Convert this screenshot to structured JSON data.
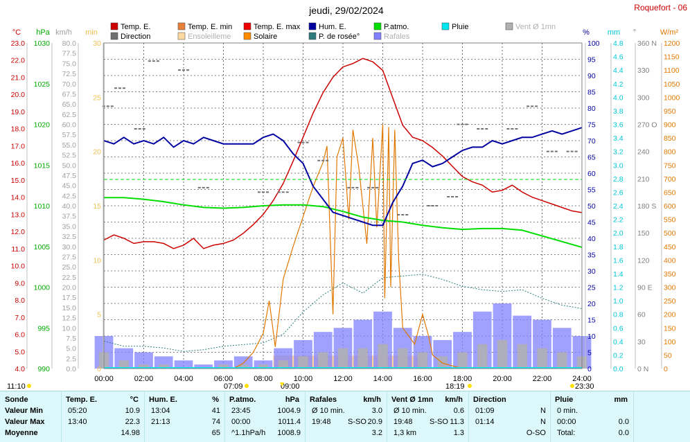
{
  "header": {
    "title": "jeudi, 29/02/2024",
    "station": "Roquefort - 06"
  },
  "legend": [
    {
      "label": "Temp. E.",
      "color": "#cc0000"
    },
    {
      "label": "Temp. E. min",
      "color": "#e8803c"
    },
    {
      "label": "Temp. E. max",
      "color": "#ee0000"
    },
    {
      "label": "Hum. E.",
      "color": "#0000a0"
    },
    {
      "label": "P.atmo.",
      "color": "#00dd00"
    },
    {
      "label": "Pluie",
      "color": "#00e5ee"
    },
    {
      "label": "Vent Ø 1mn",
      "color": "#b0b0b0"
    },
    {
      "label": "Direction",
      "color": "#707070"
    },
    {
      "label": "Ensoleilleme",
      "color": "#ffd9a0"
    },
    {
      "label": "Solaire",
      "color": "#ff8c00"
    },
    {
      "label": "P. de rosée°",
      "color": "#2e7b7b"
    },
    {
      "label": "Rafales",
      "color": "#8080ff"
    }
  ],
  "chart_data": {
    "type": "line",
    "title": "jeudi, 29/02/2024",
    "x_ticks": [
      "00:00",
      "02:00",
      "04:00",
      "06:00",
      "08:00",
      "10:00",
      "12:00",
      "14:00",
      "16:00",
      "18:00",
      "20:00",
      "22:00",
      "24:00"
    ],
    "axes": {
      "temp_c": {
        "unit": "°C",
        "range": [
          4.0,
          23.0
        ],
        "ticks": [
          "23.0",
          "22.0",
          "21.0",
          "20.0",
          "19.0",
          "18.0",
          "17.0",
          "16.0",
          "15.0",
          "14.0",
          "13.0",
          "12.0",
          "11.0",
          "10.0",
          "9.0",
          "8.0",
          "7.0",
          "6.0",
          "5.0",
          "4.0"
        ]
      },
      "pressure_hpa": {
        "unit": "hPa",
        "range": [
          990,
          1030
        ],
        "ticks": [
          "1030",
          "1025",
          "1020",
          "1015",
          "1010",
          "1005",
          "1000",
          "995",
          "990"
        ]
      },
      "wind_kmh": {
        "unit": "km/h",
        "range": [
          0.0,
          80.0
        ],
        "ticks": [
          "80.0",
          "77.5",
          "75.0",
          "72.5",
          "70.0",
          "67.5",
          "65.0",
          "62.5",
          "60.0",
          "57.5",
          "55.0",
          "52.5",
          "50.0",
          "47.5",
          "45.0",
          "42.5",
          "40.0",
          "37.5",
          "35.0",
          "32.5",
          "30.0",
          "27.5",
          "25.0",
          "22.5",
          "20.0",
          "17.5",
          "15.0",
          "12.5",
          "10.0",
          "7.5",
          "5.0",
          "2.5",
          "0.0"
        ]
      },
      "min_scale": {
        "unit": "min",
        "range": [
          0,
          30
        ],
        "ticks": [
          "30",
          "25",
          "20",
          "15",
          "10",
          "5",
          "0"
        ]
      },
      "humidity_pct": {
        "unit": "%",
        "range": [
          0,
          100
        ],
        "ticks": [
          "100",
          "95",
          "90",
          "85",
          "80",
          "75",
          "70",
          "65",
          "60",
          "55",
          "50",
          "45",
          "40",
          "35",
          "30",
          "25",
          "20",
          "15",
          "10",
          "5",
          "0"
        ]
      },
      "rain_mm": {
        "unit": "mm",
        "range": [
          0.0,
          4.8
        ],
        "ticks": [
          "4.8",
          "4.6",
          "4.4",
          "4.2",
          "4.0",
          "3.8",
          "3.6",
          "3.4",
          "3.2",
          "3.0",
          "2.8",
          "2.6",
          "2.4",
          "2.2",
          "2.0",
          "1.8",
          "1.6",
          "1.4",
          "1.2",
          "1.0",
          "0.8",
          "0.6",
          "0.4",
          "0.2",
          "0.0"
        ]
      },
      "direction_deg": {
        "unit": "°",
        "range": [
          0,
          360
        ],
        "ticks": [
          "360 N",
          "330",
          "300",
          "270 O",
          "240",
          "210",
          "180 S",
          "150",
          "120",
          "90 E",
          "60",
          "30",
          "0 N"
        ]
      },
      "solar_wm2": {
        "unit": "W/m²",
        "range": [
          0,
          1200
        ],
        "ticks": [
          "1200",
          "1150",
          "1100",
          "1050",
          "1000",
          "950",
          "900",
          "850",
          "800",
          "750",
          "700",
          "650",
          "600",
          "550",
          "500",
          "450",
          "400",
          "350",
          "300",
          "250",
          "200",
          "150",
          "100",
          "50",
          "0"
        ]
      }
    },
    "series": [
      {
        "name": "Temp. E.",
        "unit": "°C",
        "x": [
          0,
          0.5,
          1,
          1.5,
          2,
          2.5,
          3,
          3.5,
          4,
          4.5,
          5,
          5.5,
          6,
          6.5,
          7,
          7.5,
          8,
          8.5,
          9,
          9.5,
          10,
          10.5,
          11,
          11.5,
          12,
          12.5,
          13,
          13.5,
          14,
          14.5,
          15,
          15.5,
          16,
          16.5,
          17,
          17.5,
          18,
          18.5,
          19,
          19.5,
          20,
          20.5,
          21,
          21.5,
          22,
          22.5,
          23,
          23.5,
          24
        ],
        "y": [
          11.5,
          11.8,
          11.6,
          11.3,
          11.4,
          11.4,
          11.3,
          11.0,
          11.2,
          11.6,
          11.0,
          11.2,
          11.3,
          11.5,
          11.9,
          12.4,
          13.0,
          13.8,
          14.8,
          16.1,
          17.5,
          18.9,
          20.1,
          21.0,
          21.6,
          21.8,
          22.1,
          21.9,
          21.4,
          19.8,
          18.2,
          17.5,
          17.3,
          16.9,
          16.4,
          15.8,
          15.2,
          14.9,
          14.7,
          14.3,
          14.4,
          14.7,
          14.3,
          14.0,
          13.8,
          13.6,
          13.4,
          13.2,
          13.1
        ]
      },
      {
        "name": "Hum. E.",
        "unit": "%",
        "x": [
          0,
          0.5,
          1,
          1.5,
          2,
          2.5,
          3,
          3.5,
          4,
          4.5,
          5,
          5.5,
          6,
          6.5,
          7,
          7.5,
          8,
          8.5,
          9,
          9.5,
          10,
          10.5,
          11,
          11.5,
          12,
          12.5,
          13,
          13.5,
          14,
          14.5,
          15,
          15.5,
          16,
          16.5,
          17,
          17.5,
          18,
          18.5,
          19,
          19.5,
          20,
          20.5,
          21,
          21.5,
          22,
          22.5,
          23,
          23.5,
          24
        ],
        "y": [
          70,
          69,
          71,
          69,
          70,
          69,
          71,
          68,
          70,
          69,
          71,
          70,
          69,
          69,
          69,
          69,
          71,
          72,
          70,
          66,
          63,
          56,
          52,
          48,
          47,
          46,
          45,
          44,
          44,
          51,
          56,
          63,
          64,
          62,
          63,
          65,
          67,
          68,
          68,
          70,
          69,
          70,
          71,
          71,
          72,
          73,
          72,
          73,
          74
        ]
      },
      {
        "name": "P.atmo.",
        "unit": "hPa",
        "x": [
          0,
          1,
          2,
          3,
          4,
          5,
          6,
          7,
          8,
          9,
          10,
          11,
          12,
          13,
          14,
          15,
          16,
          17,
          18,
          19,
          20,
          21,
          22,
          23,
          24
        ],
        "y": [
          1011.0,
          1011.0,
          1010.8,
          1010.5,
          1010.1,
          1009.8,
          1009.7,
          1009.8,
          1010.0,
          1010.1,
          1010.1,
          1009.9,
          1009.3,
          1008.6,
          1008.2,
          1008.0,
          1007.6,
          1007.3,
          1007.1,
          1007.2,
          1007.2,
          1007.0,
          1006.3,
          1005.6,
          1004.9
        ]
      },
      {
        "name": "P. de rosée°",
        "unit": "°C",
        "x": [
          0,
          1,
          2,
          3,
          4,
          5,
          6,
          7,
          8,
          9,
          10,
          11,
          12,
          13,
          14,
          15,
          16,
          17,
          18,
          19,
          20,
          21,
          22,
          23,
          24
        ],
        "y": [
          5.6,
          5.3,
          5.3,
          5.2,
          5.0,
          5.1,
          5.3,
          5.4,
          5.5,
          6.0,
          7.3,
          8.3,
          9.0,
          8.4,
          9.3,
          9.4,
          9.5,
          9.2,
          8.8,
          8.6,
          8.5,
          8.6,
          8.1,
          7.7,
          7.5
        ]
      },
      {
        "name": "Solaire",
        "unit": "W/m²",
        "x": [
          6.5,
          7,
          7.5,
          8,
          8.3,
          8.6,
          9,
          9.5,
          10,
          10.5,
          11,
          11.2,
          11.5,
          11.7,
          12,
          12.3,
          12.5,
          12.8,
          13,
          13.2,
          13.5,
          13.7,
          14,
          14.1,
          14.3,
          14.4,
          14.6,
          14.8,
          15,
          15.3,
          15.6,
          16,
          16.3,
          16.5,
          17,
          17.5,
          18
        ],
        "y": [
          0,
          20,
          60,
          130,
          250,
          80,
          330,
          450,
          560,
          670,
          760,
          820,
          200,
          780,
          850,
          550,
          880,
          740,
          600,
          460,
          850,
          520,
          900,
          260,
          890,
          300,
          880,
          400,
          150,
          120,
          90,
          200,
          120,
          50,
          20,
          10,
          0
        ]
      },
      {
        "name": "Rafales",
        "unit": "km/h",
        "x": [
          0,
          1,
          2,
          3,
          4,
          5,
          6,
          7,
          8,
          9,
          10,
          11,
          12,
          13,
          14,
          15,
          16,
          17,
          18,
          19,
          20,
          21,
          22,
          23,
          24
        ],
        "y": [
          8,
          5,
          4,
          3,
          2,
          1,
          2,
          3,
          2,
          5,
          7,
          9,
          10,
          12,
          14,
          10,
          8,
          7,
          9,
          14,
          16,
          13,
          12,
          10,
          8
        ]
      },
      {
        "name": "Vent Ø 1mn",
        "unit": "km/h",
        "x": [
          0,
          1,
          2,
          3,
          4,
          5,
          6,
          7,
          8,
          9,
          10,
          11,
          12,
          13,
          14,
          15,
          16,
          17,
          18,
          19,
          20,
          21,
          22,
          23,
          24
        ],
        "y": [
          4,
          2,
          1,
          1,
          0,
          0,
          1,
          1,
          1,
          2,
          3,
          4,
          5,
          5,
          6,
          5,
          4,
          3,
          4,
          6,
          7,
          6,
          5,
          4,
          3
        ]
      },
      {
        "name": "Direction",
        "unit": "°",
        "x": [
          0.2,
          0.8,
          1.8,
          2.5,
          4.0,
          5.0,
          8.0,
          9.0,
          10.0,
          11.0,
          12.5,
          13.5,
          15.0,
          16.5,
          17.5,
          18.0,
          19.0,
          20.5,
          21.5,
          22.5,
          23.5
        ],
        "y": [
          290,
          310,
          265,
          340,
          330,
          200,
          195,
          195,
          250,
          230,
          200,
          200,
          170,
          180,
          190,
          270,
          265,
          265,
          290,
          240,
          240
        ]
      },
      {
        "name": "Ensoleilleme",
        "unit": "min",
        "x": [
          8.5,
          9,
          10,
          11,
          12,
          13,
          14,
          15
        ],
        "y": [
          1.2,
          1.2,
          1.2,
          1.2,
          1.2,
          1.2,
          1.2,
          1.2
        ]
      }
    ]
  },
  "x_markers": {
    "left": "11:10",
    "sunrise": "07:09",
    "marker_mid": "09:00",
    "sunset": "18:19",
    "right": "23:30"
  },
  "summary": {
    "sonde": {
      "header": "Sonde",
      "rows": [
        "Valeur Min",
        "Valeur Max",
        "Moyenne"
      ]
    },
    "temp": {
      "header": "Temp. E.",
      "unit": "°C",
      "rows": [
        [
          "05:20",
          "10.9"
        ],
        [
          "13:40",
          "22.3"
        ],
        [
          "",
          "14.98"
        ]
      ]
    },
    "hum": {
      "header": "Hum. E.",
      "unit": "%",
      "rows": [
        [
          "13:04",
          "41"
        ],
        [
          "21:13",
          "74"
        ],
        [
          "",
          "65"
        ]
      ]
    },
    "patmo": {
      "header": "P.atmo.",
      "unit": "hPa",
      "rows": [
        [
          "23:45",
          "1004.9"
        ],
        [
          "00:00",
          "1011.4"
        ],
        [
          "^1.1hPa/h",
          "1008.9"
        ]
      ]
    },
    "rafales": {
      "header": "Rafales",
      "unit": "km/h",
      "rows": [
        [
          "Ø 10 min.",
          "",
          "3.0"
        ],
        [
          "19:48",
          "S-SO",
          "20.9"
        ],
        [
          "",
          "",
          "3.2"
        ]
      ]
    },
    "vent": {
      "header": "Vent Ø 1mn",
      "unit": "km/h",
      "rows": [
        [
          "Ø 10 min.",
          "",
          "0.6"
        ],
        [
          "19:48",
          "S-SO",
          "11.3"
        ],
        [
          "1,3 km",
          "",
          "1.3"
        ]
      ]
    },
    "direction": {
      "header": "Direction",
      "unit": "",
      "rows": [
        [
          "01:09",
          "N"
        ],
        [
          "01:14",
          "N"
        ],
        [
          "",
          "O-SO"
        ]
      ]
    },
    "pluie": {
      "header": "Pluie",
      "unit": "mm",
      "rows": [
        [
          "0 min.",
          ""
        ],
        [
          "00:00",
          "0.0"
        ],
        [
          "Total:",
          "0.0"
        ]
      ]
    }
  }
}
